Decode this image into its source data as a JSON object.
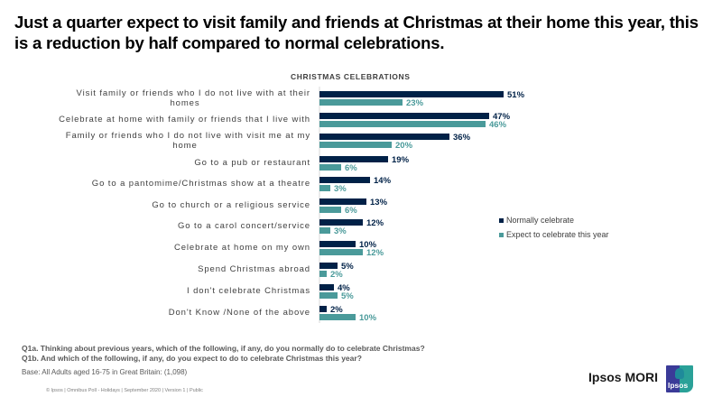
{
  "title": "Just a quarter expect to visit family and friends at Christmas at their home this year, this is a reduction by half compared to normal celebrations.",
  "chart_data": {
    "type": "bar",
    "orientation": "horizontal",
    "title": "CHRISTMAS CELEBRATIONS",
    "xlabel": "",
    "ylabel": "",
    "xlim": [
      0,
      60
    ],
    "grid": false,
    "legend_position": "right",
    "categories": [
      "Visit family or friends who I do not live with at their homes",
      "Celebrate at home with family or friends that I live with",
      "Family or friends who I do not live with visit me at my home",
      "Go to a pub or restaurant",
      "Go to a pantomime/Christmas show at a theatre",
      "Go to church or a religious service",
      "Go to a carol concert/service",
      "Celebrate at home on my own",
      "Spend Christmas abroad",
      "I don't celebrate Christmas",
      "Don't Know /None of the above"
    ],
    "category_lines": [
      [
        "Visit family or friends who I do not live with at their",
        "homes"
      ],
      [
        "Celebrate at home with family or friends that I live with"
      ],
      [
        "Family or friends who I do not live with visit me at my",
        "home"
      ],
      [
        "Go to a pub or restaurant"
      ],
      [
        "Go to a pantomime/Christmas show at a theatre"
      ],
      [
        "Go to church or a religious service"
      ],
      [
        "Go to a carol concert/service"
      ],
      [
        "Celebrate at home on my own"
      ],
      [
        "Spend Christmas abroad"
      ],
      [
        "I don't celebrate Christmas"
      ],
      [
        "Don't Know /None of the above"
      ]
    ],
    "series": [
      {
        "name": "Normally celebrate",
        "color": "#002147",
        "values": [
          51,
          47,
          36,
          19,
          14,
          13,
          12,
          10,
          5,
          4,
          2
        ],
        "labels": [
          "51%",
          "47%",
          "36%",
          "19%",
          "14%",
          "13%",
          "12%",
          "10%",
          "5%",
          "4%",
          "2%"
        ]
      },
      {
        "name": "Expect to celebrate this year",
        "color": "#4a9a9a",
        "values": [
          23,
          46,
          20,
          6,
          3,
          6,
          3,
          12,
          2,
          5,
          10
        ],
        "labels": [
          "23%",
          "46%",
          "20%",
          "6%",
          "3%",
          "6%",
          "3%",
          "12%",
          "2%",
          "5%",
          "10%"
        ]
      }
    ]
  },
  "legend": [
    {
      "label": "Normally celebrate",
      "color": "#002147"
    },
    {
      "label": "Expect to celebrate this year",
      "color": "#4a9a9a"
    }
  ],
  "questions": [
    "Q1a. Thinking about previous years, which of the following, if any, do you normally do to celebrate Christmas?",
    "Q1b. And which of the following, if any, do you expect to do to celebrate Christmas this year?"
  ],
  "base": "Base: All Adults aged 16-75 in Great Britain: (1,098)",
  "footer": "© Ipsos | Omnibus Poll - Holidays  | September 2020 | Version 1 | Public",
  "brand": {
    "name": "Ipsos MORI",
    "logo_text": "Ipsos"
  }
}
